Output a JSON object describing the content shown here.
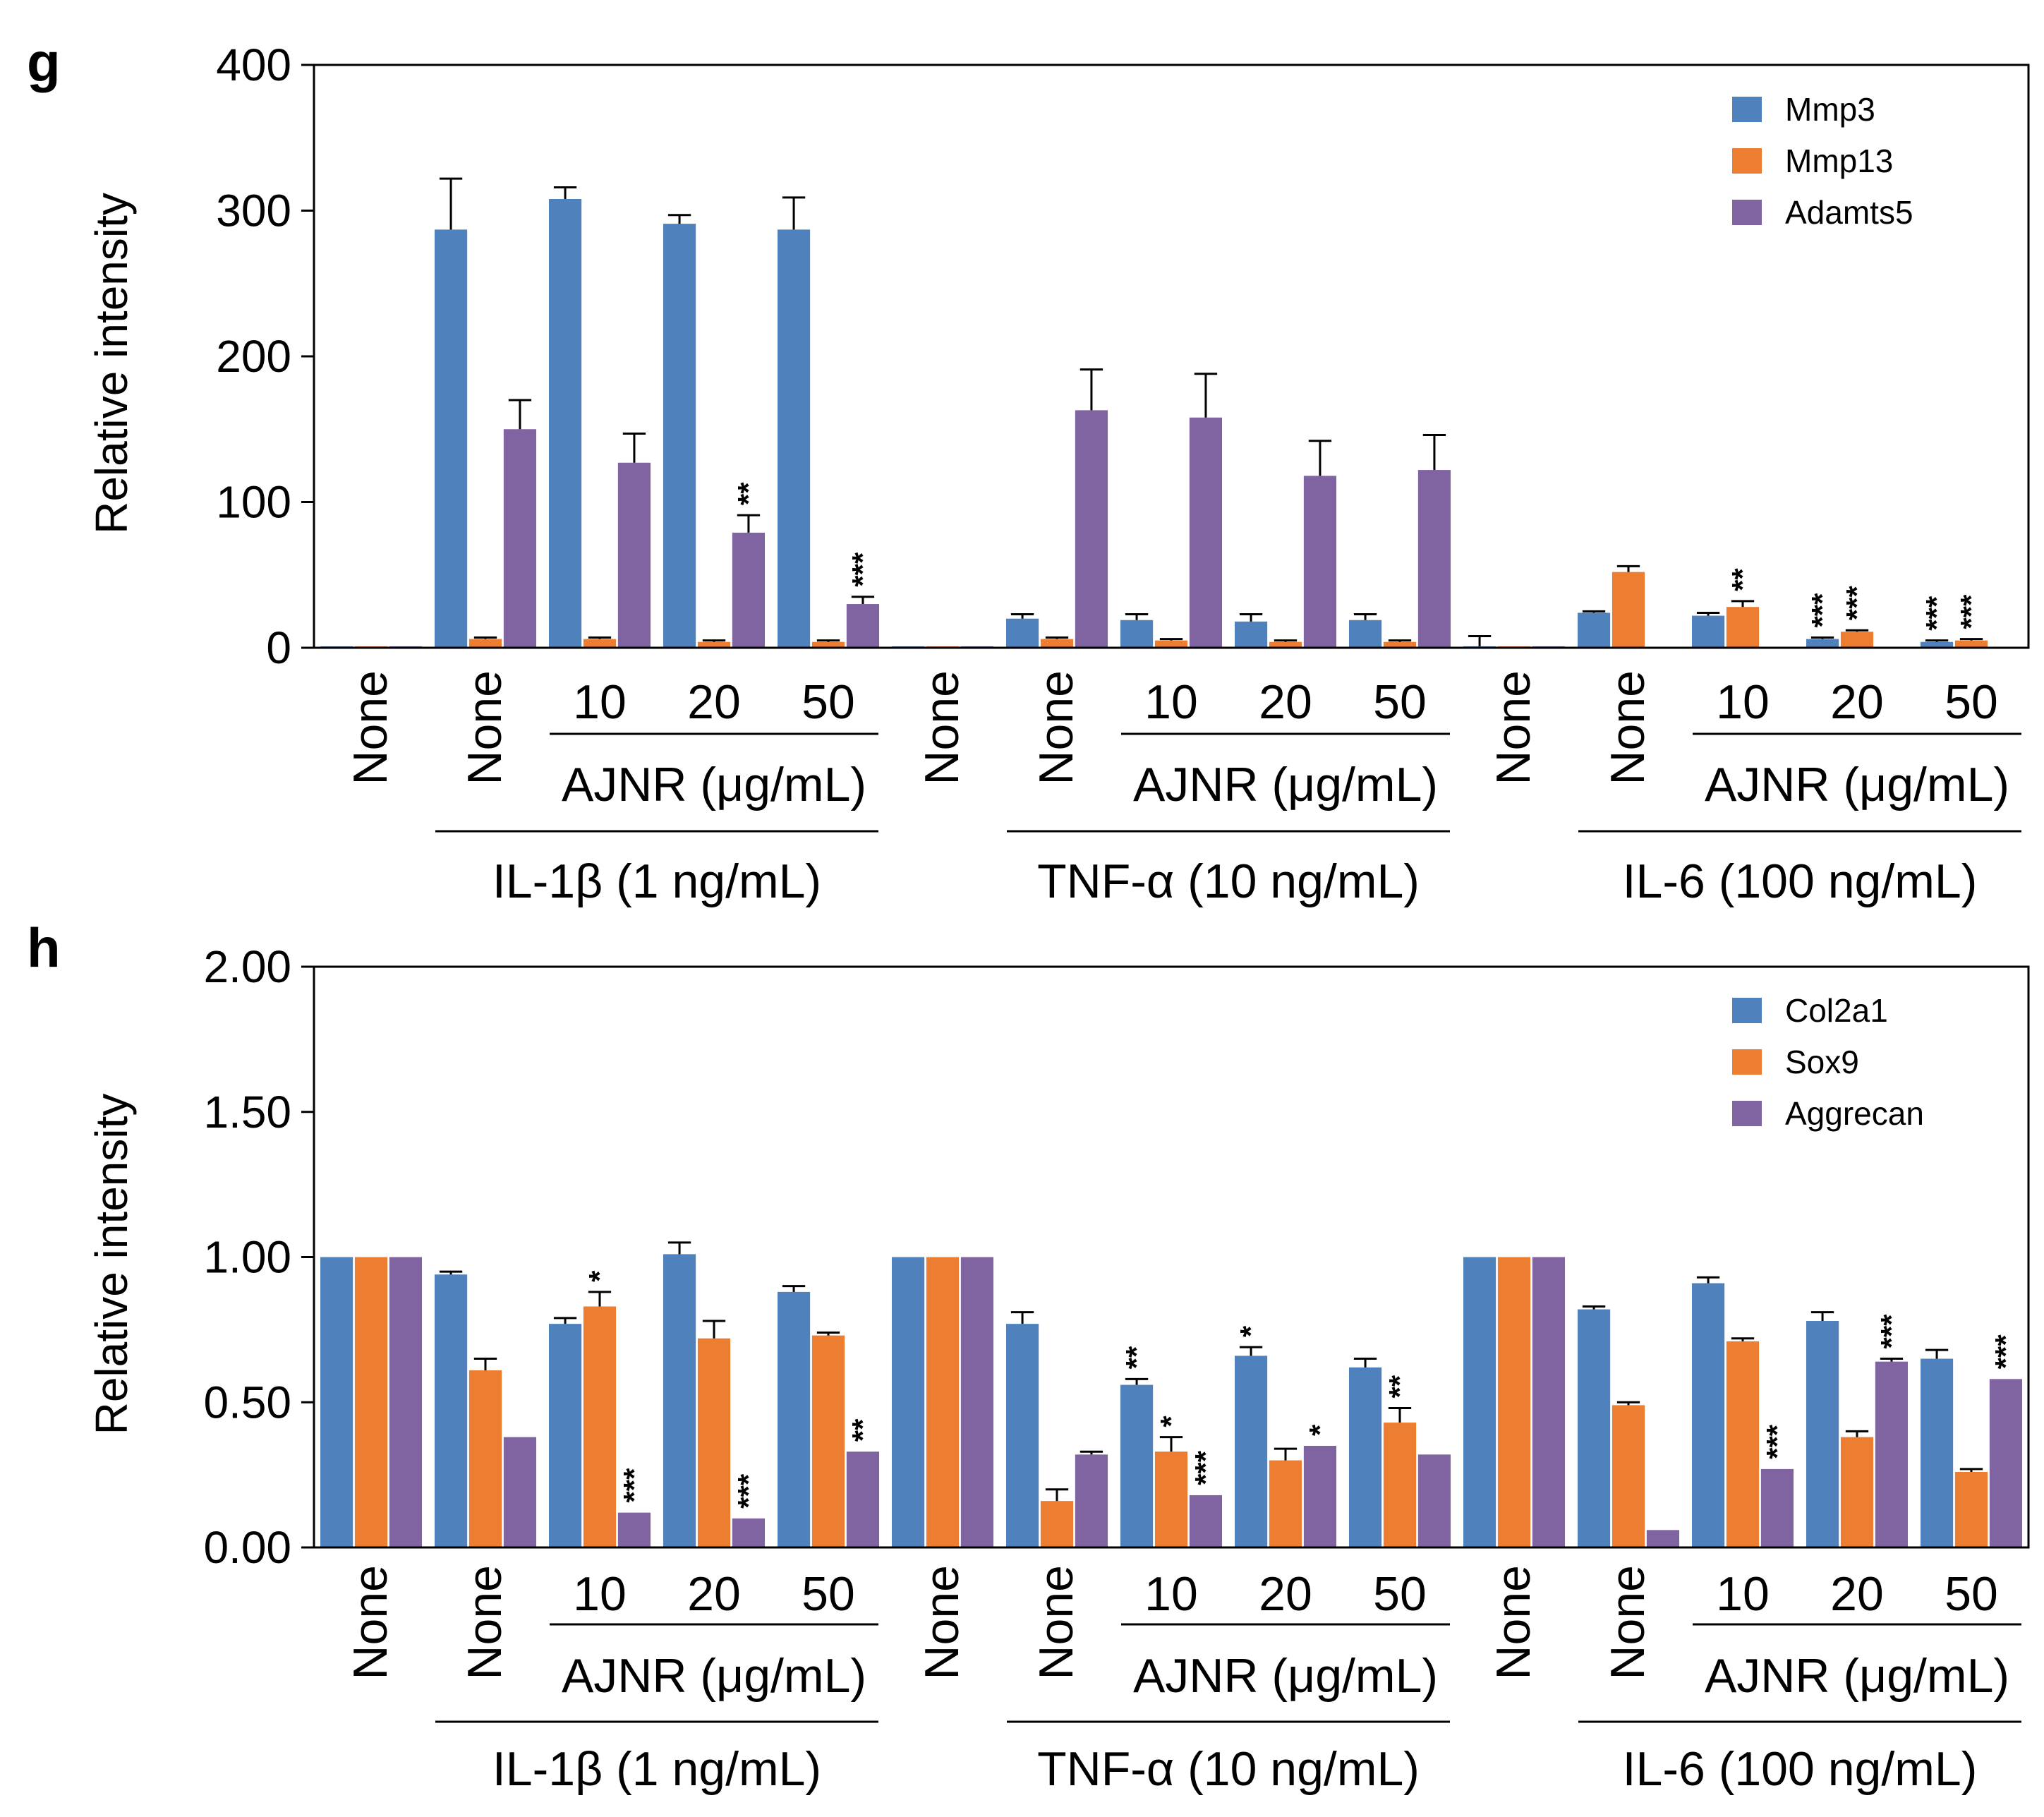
{
  "colors": {
    "blue": "#4F81BD",
    "orange": "#ED7D31",
    "purple": "#8064A2"
  },
  "chart_data": [
    {
      "panel": "g",
      "type": "bar",
      "ylabel": "Relative intensity",
      "ylim": [
        0,
        400
      ],
      "yticks": [
        "0",
        "100",
        "200",
        "300",
        "400"
      ],
      "legend": [
        "Mmp3",
        "Mmp13",
        "Adamts5"
      ],
      "legend_position": "top-right",
      "categories": [
        "None",
        "None",
        "10",
        "20",
        "50",
        "None",
        "None",
        "10",
        "20",
        "50",
        "None",
        "None",
        "10",
        "20",
        "50"
      ],
      "groups": [
        {
          "label": "IL-1β (1 ng/mL)",
          "ajnr": "AJNR (μg/mL)"
        },
        {
          "label": "TNF-α (10 ng/mL)",
          "ajnr": "AJNR (μg/mL)"
        },
        {
          "label": "IL-6 (100 ng/mL)",
          "ajnr": "AJNR (μg/mL)"
        }
      ],
      "series": [
        {
          "name": "Mmp3",
          "color": "blue",
          "values": [
            1,
            287,
            308,
            291,
            287,
            1,
            20,
            19,
            18,
            19,
            1,
            24,
            22,
            6,
            4
          ],
          "errors": [
            0,
            35,
            8,
            6,
            22,
            0,
            3,
            4,
            5,
            4,
            7,
            1,
            2,
            1,
            1
          ],
          "sig": [
            "",
            "",
            "",
            "",
            "",
            "",
            "",
            "",
            "",
            "",
            "",
            "",
            "",
            "***",
            "***"
          ]
        },
        {
          "name": "Mmp13",
          "color": "orange",
          "values": [
            1,
            6,
            6,
            4,
            4,
            1,
            6,
            5,
            4,
            4,
            1,
            52,
            28,
            11,
            5
          ],
          "errors": [
            0,
            1,
            1,
            1,
            1,
            0,
            1,
            1,
            1,
            1,
            0,
            4,
            4,
            1,
            1
          ],
          "sig": [
            "",
            "",
            "",
            "",
            "",
            "",
            "",
            "",
            "",
            "",
            "",
            "",
            "**",
            "***",
            "***"
          ]
        },
        {
          "name": "Adamts5",
          "color": "purple",
          "values": [
            1,
            150,
            127,
            79,
            30,
            1,
            163,
            158,
            118,
            122,
            1,
            0,
            0,
            0,
            0
          ],
          "errors": [
            0,
            20,
            20,
            12,
            5,
            0,
            28,
            30,
            24,
            24,
            0,
            0,
            0,
            0,
            0
          ],
          "sig": [
            "",
            "",
            "",
            "**",
            "***",
            "",
            "",
            "",
            "",
            "",
            "",
            "",
            "",
            "",
            ""
          ]
        }
      ]
    },
    {
      "panel": "h",
      "type": "bar",
      "ylabel": "Relative intensity",
      "ylim": [
        0,
        2.0
      ],
      "yticks": [
        "0.00",
        "0.50",
        "1.00",
        "1.50",
        "2.00"
      ],
      "legend": [
        "Col2a1",
        "Sox9",
        "Aggrecan"
      ],
      "legend_position": "top-right",
      "categories": [
        "None",
        "None",
        "10",
        "20",
        "50",
        "None",
        "None",
        "10",
        "20",
        "50",
        "None",
        "None",
        "10",
        "20",
        "50"
      ],
      "groups": [
        {
          "label": "IL-1β (1 ng/mL)",
          "ajnr": "AJNR (μg/mL)"
        },
        {
          "label": "TNF-α (10 ng/mL)",
          "ajnr": "AJNR (μg/mL)"
        },
        {
          "label": "IL-6 (100 ng/mL)",
          "ajnr": "AJNR (μg/mL)"
        }
      ],
      "series": [
        {
          "name": "Col2a1",
          "color": "blue",
          "values": [
            1.0,
            0.94,
            0.77,
            1.01,
            0.88,
            1.0,
            0.77,
            0.56,
            0.66,
            0.62,
            1.0,
            0.82,
            0.91,
            0.78,
            0.65
          ],
          "errors": [
            0,
            0.01,
            0.02,
            0.04,
            0.02,
            0,
            0.04,
            0.02,
            0.03,
            0.03,
            0,
            0.01,
            0.02,
            0.03,
            0.03
          ],
          "sig": [
            "",
            "",
            "",
            "",
            "",
            "",
            "",
            "**",
            "*",
            "",
            "",
            "",
            "",
            "",
            ""
          ]
        },
        {
          "name": "Sox9",
          "color": "orange",
          "values": [
            1.0,
            0.61,
            0.83,
            0.72,
            0.73,
            1.0,
            0.16,
            0.33,
            0.3,
            0.43,
            1.0,
            0.49,
            0.71,
            0.38,
            0.26
          ],
          "errors": [
            0,
            0.04,
            0.05,
            0.06,
            0.01,
            0,
            0.04,
            0.05,
            0.04,
            0.05,
            0,
            0.01,
            0.01,
            0.02,
            0.01
          ],
          "sig": [
            "",
            "",
            "*",
            "",
            "",
            "",
            "",
            "*",
            "",
            "**",
            "",
            "",
            "",
            "",
            ""
          ]
        },
        {
          "name": "Aggrecan",
          "color": "purple",
          "values": [
            1.0,
            0.38,
            0.12,
            0.1,
            0.33,
            1.0,
            0.32,
            0.18,
            0.35,
            0.32,
            1.0,
            0.06,
            0.27,
            0.64,
            0.58
          ],
          "errors": [
            0,
            0,
            0,
            0,
            0,
            0,
            0.01,
            0,
            0,
            0,
            0,
            0,
            0,
            0.01,
            0
          ],
          "sig": [
            "",
            "",
            "***",
            "***",
            "**",
            "",
            "",
            "***",
            "*",
            "",
            "",
            "",
            "***",
            "***",
            "***"
          ]
        }
      ]
    }
  ]
}
